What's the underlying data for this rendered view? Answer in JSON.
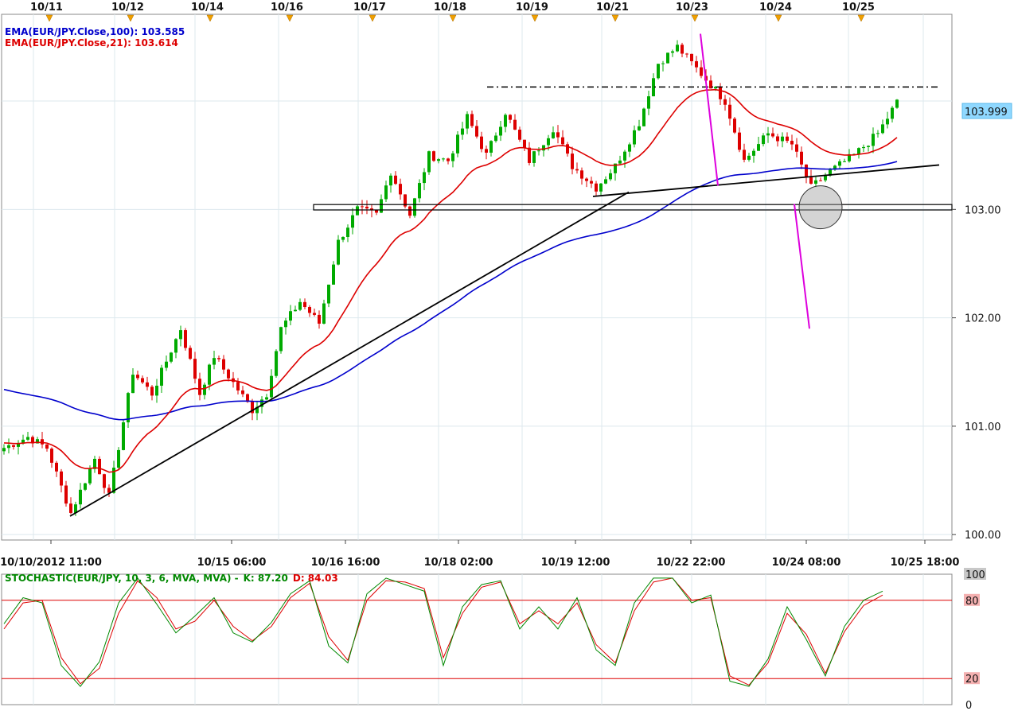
{
  "chart_data": {
    "type": "candlestick",
    "instrument": "EUR/JPY",
    "top_date_markers": [
      "10/11",
      "10/12",
      "10/14",
      "10/16",
      "10/17",
      "10/18",
      "10/19",
      "10/21",
      "10/23",
      "10/24",
      "10/25"
    ],
    "x_ticks": [
      "10/10/2012 11:00",
      "10/15 06:00",
      "10/16 16:00",
      "10/18 02:00",
      "10/19 12:00",
      "10/22 22:00",
      "10/24 08:00",
      "10/25 18:00"
    ],
    "y_ticks": [
      "100.00",
      "101.00",
      "102.00",
      "103.00"
    ],
    "ylim": [
      99.95,
      104.8
    ],
    "last_price": "103.999",
    "indicators": [
      {
        "label": "EMA(EUR/JPY.Close,100): 103.585",
        "color": "#0000cc",
        "period": 100
      },
      {
        "label": "EMA(EUR/JPY.Close,21): 103.614",
        "color": "#dd0000",
        "period": 21
      }
    ],
    "price_path": [
      [
        0,
        100.8
      ],
      [
        5,
        100.9
      ],
      [
        9,
        100.8
      ],
      [
        14,
        100.2
      ],
      [
        19,
        100.7
      ],
      [
        22,
        100.35
      ],
      [
        27,
        101.5
      ],
      [
        31,
        101.3
      ],
      [
        37,
        101.9
      ],
      [
        41,
        101.3
      ],
      [
        44,
        101.65
      ],
      [
        48,
        101.4
      ],
      [
        52,
        101.15
      ],
      [
        55,
        101.3
      ],
      [
        58,
        101.9
      ],
      [
        62,
        102.15
      ],
      [
        66,
        101.95
      ],
      [
        70,
        102.7
      ],
      [
        74,
        103.0
      ],
      [
        78,
        102.95
      ],
      [
        81,
        103.35
      ],
      [
        85,
        102.95
      ],
      [
        89,
        103.5
      ],
      [
        93,
        103.45
      ],
      [
        97,
        103.85
      ],
      [
        101,
        103.5
      ],
      [
        105,
        103.9
      ],
      [
        110,
        103.45
      ],
      [
        115,
        103.75
      ],
      [
        119,
        103.4
      ],
      [
        124,
        103.2
      ],
      [
        128,
        103.4
      ],
      [
        133,
        103.8
      ],
      [
        137,
        104.35
      ],
      [
        141,
        104.5
      ],
      [
        146,
        104.25
      ],
      [
        151,
        104.0
      ],
      [
        155,
        103.45
      ],
      [
        160,
        103.7
      ],
      [
        165,
        103.6
      ],
      [
        169,
        103.2
      ],
      [
        173,
        103.35
      ],
      [
        178,
        103.5
      ],
      [
        183,
        103.7
      ],
      [
        187,
        103.99
      ]
    ],
    "stochastic": {
      "label": "STOCHASTIC(EUR/JPY, 10, 3, 6, MVA, MVA) -",
      "k_label": "K: 87.20",
      "d_label": "D: 84.03",
      "k_color": "#008800",
      "d_color": "#dd0000",
      "levels": [
        "100",
        "80",
        "20",
        "0"
      ],
      "k": [
        [
          0,
          62
        ],
        [
          4,
          82
        ],
        [
          8,
          78
        ],
        [
          12,
          30
        ],
        [
          16,
          14
        ],
        [
          20,
          33
        ],
        [
          24,
          78
        ],
        [
          28,
          97
        ],
        [
          32,
          77
        ],
        [
          36,
          55
        ],
        [
          40,
          68
        ],
        [
          44,
          82
        ],
        [
          48,
          55
        ],
        [
          52,
          48
        ],
        [
          56,
          63
        ],
        [
          60,
          85
        ],
        [
          64,
          95
        ],
        [
          68,
          45
        ],
        [
          72,
          32
        ],
        [
          76,
          85
        ],
        [
          80,
          97
        ],
        [
          84,
          92
        ],
        [
          88,
          87
        ],
        [
          92,
          30
        ],
        [
          96,
          75
        ],
        [
          100,
          92
        ],
        [
          104,
          95
        ],
        [
          108,
          58
        ],
        [
          112,
          75
        ],
        [
          116,
          58
        ],
        [
          120,
          82
        ],
        [
          124,
          42
        ],
        [
          128,
          30
        ],
        [
          132,
          78
        ],
        [
          136,
          97
        ],
        [
          140,
          97
        ],
        [
          144,
          78
        ],
        [
          148,
          84
        ],
        [
          152,
          18
        ],
        [
          156,
          14
        ],
        [
          160,
          35
        ],
        [
          164,
          75
        ],
        [
          168,
          50
        ],
        [
          172,
          22
        ],
        [
          176,
          60
        ],
        [
          180,
          80
        ],
        [
          184,
          87
        ]
      ],
      "d": [
        [
          0,
          58
        ],
        [
          4,
          78
        ],
        [
          8,
          80
        ],
        [
          12,
          36
        ],
        [
          16,
          16
        ],
        [
          20,
          28
        ],
        [
          24,
          70
        ],
        [
          28,
          95
        ],
        [
          32,
          82
        ],
        [
          36,
          58
        ],
        [
          40,
          64
        ],
        [
          44,
          80
        ],
        [
          48,
          60
        ],
        [
          52,
          49
        ],
        [
          56,
          60
        ],
        [
          60,
          82
        ],
        [
          64,
          93
        ],
        [
          68,
          52
        ],
        [
          72,
          34
        ],
        [
          76,
          80
        ],
        [
          80,
          95
        ],
        [
          84,
          94
        ],
        [
          88,
          89
        ],
        [
          92,
          36
        ],
        [
          96,
          70
        ],
        [
          100,
          90
        ],
        [
          104,
          94
        ],
        [
          108,
          62
        ],
        [
          112,
          72
        ],
        [
          116,
          62
        ],
        [
          120,
          78
        ],
        [
          124,
          46
        ],
        [
          128,
          32
        ],
        [
          132,
          72
        ],
        [
          136,
          94
        ],
        [
          140,
          97
        ],
        [
          144,
          80
        ],
        [
          148,
          82
        ],
        [
          152,
          22
        ],
        [
          156,
          15
        ],
        [
          160,
          32
        ],
        [
          164,
          70
        ],
        [
          168,
          54
        ],
        [
          172,
          24
        ],
        [
          176,
          56
        ],
        [
          180,
          76
        ],
        [
          184,
          84
        ]
      ]
    },
    "annotations": {
      "support_level": 103.02,
      "resistance_level": 104.13
    },
    "colors": {
      "up_candle": "#00aa00",
      "down_candle": "#dd0000",
      "grid": "#dde8ee",
      "trendline": "#000000",
      "pink_line": "#dd00dd",
      "marker": "#f0a000",
      "price_tag_bg": "#8fd8ff",
      "stoch_level_line": "#dd0000"
    }
  }
}
